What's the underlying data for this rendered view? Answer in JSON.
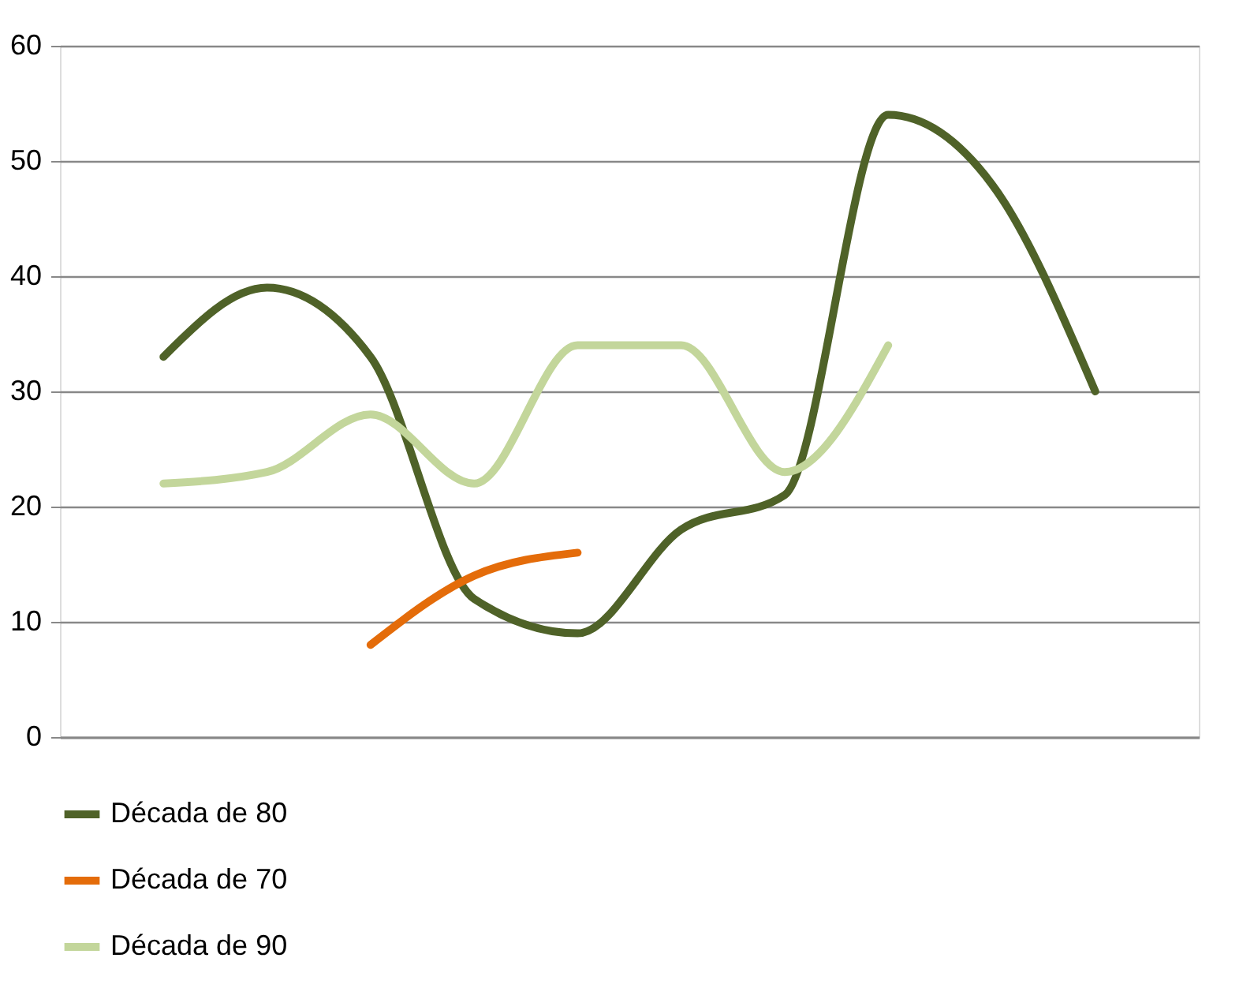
{
  "chart_data": {
    "type": "line",
    "categories": [
      null,
      null,
      null,
      null,
      null,
      null,
      null,
      null,
      null,
      null
    ],
    "series": [
      {
        "name": "Década de 80",
        "color": "#4f6228",
        "values": [
          33,
          39,
          33,
          12,
          9,
          18,
          21,
          54,
          48,
          30
        ]
      },
      {
        "name": "Década de 70",
        "color": "#e46c0a",
        "values": [
          null,
          null,
          8,
          14,
          16,
          null,
          null,
          null,
          null,
          null
        ]
      },
      {
        "name": "Década de 90",
        "color": "#c3d69b",
        "values": [
          22,
          23,
          28,
          22,
          34,
          34,
          23,
          34,
          null,
          null
        ]
      }
    ],
    "ylim": [
      0,
      60
    ],
    "yticks": [
      0,
      10,
      20,
      30,
      40,
      50,
      60
    ],
    "grid": "y",
    "legend": "bottom left",
    "tick_labels": "y",
    "marker": "none",
    "line_style": "solid"
  }
}
